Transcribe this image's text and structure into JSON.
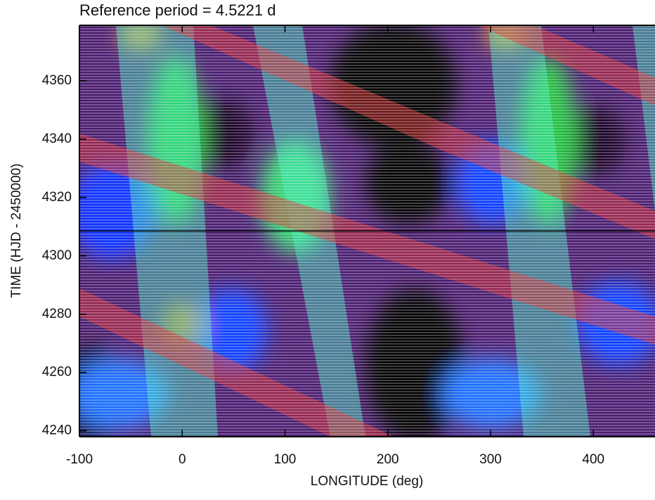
{
  "chart_data": {
    "type": "contour",
    "title": "Reference period = 4.5221 d",
    "xlabel": "LONGITUDE (deg)",
    "ylabel": "TIME (HJD - 2450000)",
    "xlim": [
      -100,
      460
    ],
    "ylim": [
      4238,
      4379
    ],
    "xticks": [
      -100,
      0,
      100,
      200,
      300,
      400
    ],
    "yticks": [
      4240,
      4260,
      4280,
      4300,
      4320,
      4340,
      4360
    ],
    "hlines": [
      4308.5
    ]
  }
}
